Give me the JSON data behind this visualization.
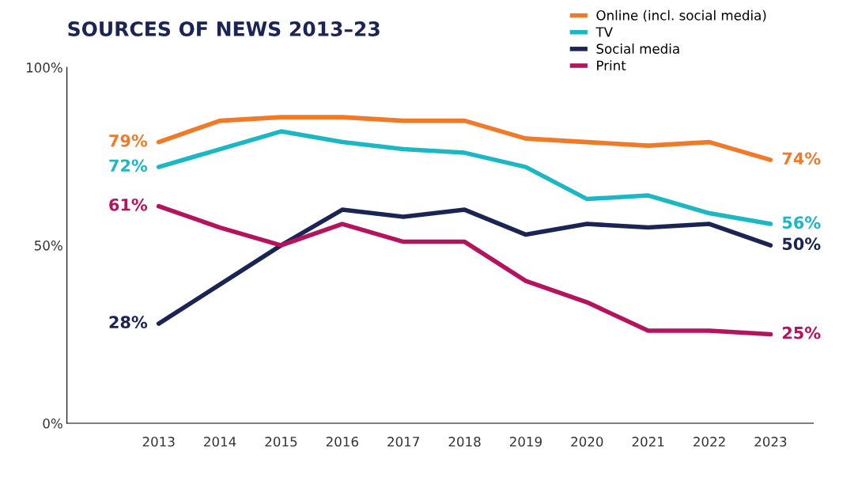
{
  "chart_data": {
    "type": "line",
    "title": "SOURCES OF NEWS 2013–23",
    "categories": [
      "2013",
      "2014",
      "2015",
      "2016",
      "2017",
      "2018",
      "2019",
      "2020",
      "2021",
      "2022",
      "2023"
    ],
    "series": [
      {
        "name": "Online (incl. social media)",
        "color": "#f07a28",
        "values": [
          79,
          85,
          86,
          86,
          85,
          85,
          80,
          79,
          78,
          79,
          74
        ],
        "value_labels": [
          "79%",
          null,
          null,
          null,
          null,
          null,
          null,
          null,
          null,
          null,
          "74%"
        ]
      },
      {
        "name": "TV",
        "color": "#1bb8c4",
        "values": [
          72,
          77,
          82,
          79,
          77,
          76,
          72,
          63,
          64,
          59,
          56
        ],
        "value_labels": [
          "72%",
          null,
          null,
          null,
          null,
          null,
          null,
          null,
          null,
          null,
          "56%"
        ]
      },
      {
        "name": "Social media",
        "color": "#1a2455",
        "values": [
          28,
          39,
          50,
          60,
          58,
          60,
          53,
          56,
          55,
          56,
          50
        ],
        "value_labels": [
          "28%",
          null,
          null,
          null,
          null,
          null,
          null,
          null,
          null,
          null,
          "50%"
        ]
      },
      {
        "name": "Print",
        "color": "#b5135e",
        "values": [
          61,
          55,
          50,
          56,
          51,
          51,
          40,
          34,
          26,
          26,
          25
        ],
        "value_labels": [
          "61%",
          null,
          null,
          null,
          null,
          null,
          null,
          null,
          null,
          null,
          "25%"
        ]
      }
    ],
    "ylim": [
      0,
      100
    ],
    "yticks": [
      {
        "value": 0,
        "label": "0%"
      },
      {
        "value": 50,
        "label": "50%"
      },
      {
        "value": 100,
        "label": "100%"
      }
    ],
    "grid": false,
    "legend": "top right",
    "marker": "none",
    "line_style": "solid"
  }
}
